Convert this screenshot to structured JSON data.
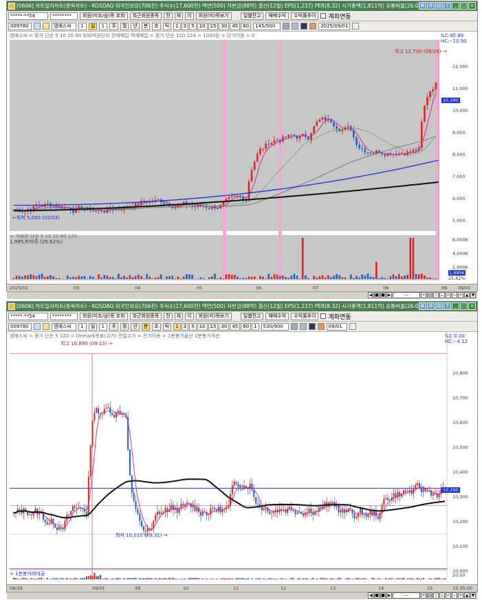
{
  "top": {
    "title": "[0606] 차트일자차트(종목차트) - KOSDAQ 외국인보유(706천) 주식수(17,600천) 액면(500) 자본금(88억) 결산(12월) EPS(1,237) PER(8.32) 시가총액(1,811억) 유통비율(26.0)",
    "account": "*****-**54",
    "password": "********",
    "btn_filter": "회원(미조/삼)목 조회",
    "btn_recent": "최근회원종목",
    "btn_all": "전",
    "btn_buy": "체",
    "btn_clear": "이",
    "btn_history": "회원(미)목보기",
    "btn_daily": "일별잔고",
    "btn_trade": "매매수익",
    "btn_revenue": "수익률추이",
    "chk_label": "계좌연동",
    "code": "009780",
    "stock_name": "엠에스씨",
    "period_n": "1",
    "period_d": "일",
    "p1": "주",
    "p2": "월",
    "p3": "년",
    "p4": "분",
    "p5": "초",
    "p6": "틱",
    "intervals": [
      "1",
      "3",
      "5",
      "10",
      "15",
      "30",
      "45",
      "60"
    ],
    "count_field": "145/500",
    "date_field": "2025/09/01",
    "legend_price": "엠에스씨 = 종가 단순 5 10 20 60 500억원단위 전체매입 역세매입 = 종가 단순 120 224 = 1000원 = 단기이동 = 0",
    "legend_vol": "= 거래량 단순 5 10 20 60 120",
    "vol_readout": "1,995,970주 (25.62%)",
    "high_label": "최고 12,700 (08/29) →",
    "low_label": "←최저 5,050 (02/03)",
    "right_top1": "ILC:95.89",
    "right_top2": "HC:--10.90",
    "price_ticks": [
      "12,000",
      "11,000",
      "10,000",
      "9,000",
      "8,000",
      "7,000",
      "6,000",
      "5,000"
    ],
    "vol_ticks": [
      "6,000K",
      "4,000K",
      "2,000K"
    ],
    "last_price": "10,290",
    "x_labels": [
      "2025/01",
      "03",
      "04",
      "05",
      "06",
      "07",
      "08",
      "09",
      "09/01"
    ],
    "vol_value_label": "1,995K",
    "pct_label": "25.62%",
    "colors": {
      "up": "#e0201d",
      "down": "#1f5dcc",
      "highlight": "#f2a8d4",
      "ma_black": "#111111",
      "ma_blue": "#1b2fe0"
    }
  },
  "bottom": {
    "title": "[0606] 차트일자차트(종목차트) - KOSDAQ 외국인보유(706천) 주식수(17,600천) 액면(500) 자본금(88억) 결산(12월) EPS(1,237) PER(8.32) 시가총액(1,811억) 유통비율(26.0)",
    "account": "*****-**54",
    "password": "********",
    "btn_filter": "회원(미조/삼)목 조회",
    "btn_recent": "최근회원종목",
    "btn_all": "전",
    "btn_buy": "체",
    "btn_clear": "이",
    "btn_history": "회원(미)목보기",
    "btn_daily": "일별잔고",
    "btn_trade": "매매수익",
    "btn_revenue": "수익률추이",
    "chk_label": "계좌연동",
    "code": "009780",
    "stock_name": "엠에스씨",
    "period_n": "1",
    "p0": "일",
    "p1": "주",
    "p2": "월",
    "p3": "년",
    "p4": "분",
    "p5": "초",
    "p6": "틱",
    "intervals": [
      "1",
      "3",
      "5",
      "10",
      "15",
      "30",
      "45",
      "60",
      "1"
    ],
    "count_field": "530/900",
    "date_field": "09/01",
    "legend_price": "엠에스씨 = 종가 단순 5 120 = Demark목표(고가) 전일고가 = 전기이동 = 1분봉기울선 1분봉가격선",
    "legend_vol": "= 1분봉거래대금",
    "high_label": "최고 10,880 (09:13) →",
    "low_label": "최저 10,010 (09:31) →",
    "right_top1": "ILC:0.00",
    "right_top2": "HC:--4.12",
    "price_ticks": [
      "10,800",
      "10,700",
      "10,600",
      "10,500",
      "10,400",
      "10,300",
      "10,200",
      "10,100",
      "10,000"
    ],
    "last_price": "10,290",
    "vol_tick": "20.00",
    "x_labels": [
      "08/29",
      "09/01",
      "09",
      "10",
      "11",
      "12",
      "13",
      "14",
      "15",
      "15:35:00"
    ]
  }
}
